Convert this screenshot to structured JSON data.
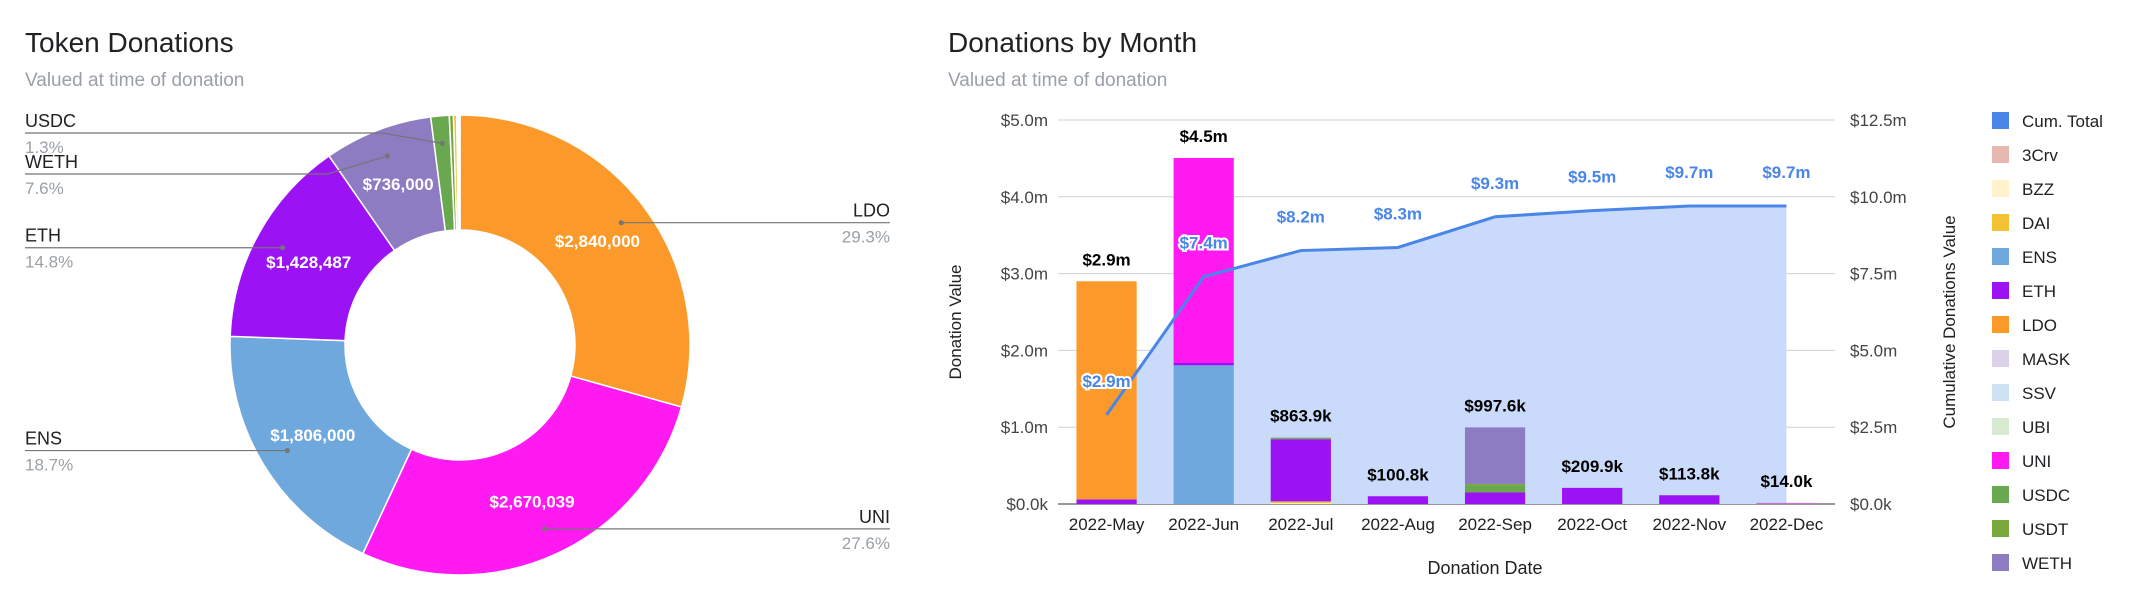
{
  "chart_data": [
    {
      "type": "pie",
      "title": "Token Donations",
      "subtitle": "Valued at time of donation",
      "donut": true,
      "slices": [
        {
          "name": "LDO",
          "value": 2840000,
          "value_label": "$2,840,000",
          "pct": "29.3%",
          "color": "#fb9a2a"
        },
        {
          "name": "UNI",
          "value": 2670039,
          "value_label": "$2,670,039",
          "pct": "27.6%",
          "color": "#ff1af2"
        },
        {
          "name": "ENS",
          "value": 1806000,
          "value_label": "$1,806,000",
          "pct": "18.7%",
          "color": "#6fa8dc"
        },
        {
          "name": "ETH",
          "value": 1428487,
          "value_label": "$1,428,487",
          "pct": "14.8%",
          "color": "#9b12f5"
        },
        {
          "name": "WETH",
          "value": 736000,
          "value_label": "$736,000",
          "pct": "7.6%",
          "color": "#8e7cc3"
        },
        {
          "name": "USDC",
          "value": 125000,
          "value_label": "",
          "pct": "1.3%",
          "color": "#6aa84f"
        },
        {
          "name": "USDT",
          "value": 28000,
          "value_label": "",
          "pct": "",
          "color": "#79a83f"
        },
        {
          "name": "DAI",
          "value": 22000,
          "value_label": "",
          "pct": "",
          "color": "#f1c232"
        },
        {
          "name": "BZZ",
          "value": 12000,
          "value_label": "",
          "pct": "",
          "color": "#fff2cc"
        },
        {
          "name": "3Crv",
          "value": 10000,
          "value_label": "",
          "pct": "",
          "color": "#e6b8af"
        }
      ],
      "outside_labels": [
        "LDO",
        "UNI",
        "ENS",
        "ETH",
        "WETH",
        "USDC"
      ]
    },
    {
      "type": "bar",
      "stacked": true,
      "title": "Donations by Month",
      "subtitle": "Valued at time of donation",
      "xlabel": "Donation Date",
      "ylabel": "Donation Value",
      "y2label": "Cumulative Donations Value",
      "ylim": [
        0,
        5000000
      ],
      "y2lim": [
        0,
        12500000
      ],
      "yticks": [
        "$0.0k",
        "$1.0m",
        "$2.0m",
        "$3.0m",
        "$4.0m",
        "$5.0m"
      ],
      "y2ticks": [
        "$0.0k",
        "$2.5m",
        "$5.0m",
        "$7.5m",
        "$10.0m",
        "$12.5m"
      ],
      "categories": [
        "2022-May",
        "2022-Jun",
        "2022-Jul",
        "2022-Aug",
        "2022-Sep",
        "2022-Oct",
        "2022-Nov",
        "2022-Dec"
      ],
      "totals_labels": [
        "$2.9m",
        "$4.5m",
        "$863.9k",
        "$100.8k",
        "$997.6k",
        "$209.9k",
        "$113.8k",
        "$14.0k"
      ],
      "series": [
        {
          "name": "3Crv",
          "color": "#e6b8af",
          "values": [
            0,
            0,
            0,
            0,
            0,
            0,
            0,
            10000
          ]
        },
        {
          "name": "BZZ",
          "color": "#fff2cc",
          "values": [
            0,
            0,
            12000,
            0,
            0,
            0,
            0,
            0
          ]
        },
        {
          "name": "DAI",
          "color": "#f1c232",
          "values": [
            0,
            0,
            22000,
            0,
            0,
            0,
            0,
            0
          ]
        },
        {
          "name": "ENS",
          "color": "#6fa8dc",
          "values": [
            0,
            1806000,
            0,
            0,
            0,
            0,
            0,
            0
          ]
        },
        {
          "name": "ETH",
          "color": "#9b12f5",
          "values": [
            60000,
            30000,
            810000,
            100800,
            150000,
            209900,
            113800,
            4000
          ]
        },
        {
          "name": "LDO",
          "color": "#fb9a2a",
          "values": [
            2840000,
            0,
            0,
            0,
            0,
            0,
            0,
            0
          ]
        },
        {
          "name": "MASK",
          "color": "#d9d2e9",
          "values": [
            0,
            0,
            0,
            0,
            0,
            0,
            0,
            0
          ]
        },
        {
          "name": "SSV",
          "color": "#cfe2f3",
          "values": [
            0,
            0,
            0,
            0,
            0,
            0,
            0,
            0
          ]
        },
        {
          "name": "UBI",
          "color": "#d9ead3",
          "values": [
            0,
            0,
            0,
            0,
            0,
            0,
            0,
            0
          ]
        },
        {
          "name": "UNI",
          "color": "#ff1af2",
          "values": [
            0,
            2670039,
            0,
            0,
            0,
            0,
            0,
            0
          ]
        },
        {
          "name": "USDC",
          "color": "#6aa84f",
          "values": [
            0,
            0,
            9900,
            0,
            85000,
            0,
            0,
            0
          ]
        },
        {
          "name": "USDT",
          "color": "#79a83f",
          "values": [
            0,
            0,
            10000,
            0,
            26600,
            0,
            0,
            0
          ]
        },
        {
          "name": "WETH",
          "color": "#8e7cc3",
          "values": [
            0,
            0,
            0,
            0,
            736000,
            0,
            0,
            0
          ]
        }
      ],
      "cumulative": {
        "name": "Cum. Total",
        "color": "#4a86e8",
        "area_color": "#c9dafa",
        "values": [
          2900000,
          7400000,
          8250000,
          8350000,
          9350000,
          9550000,
          9700000,
          9700000
        ],
        "labels": [
          "$2.9m",
          "$7.4m",
          "$8.2m",
          "$8.3m",
          "$9.3m",
          "$9.5m",
          "$9.7m",
          "$9.7m"
        ]
      },
      "legend": [
        "Cum. Total",
        "3Crv",
        "BZZ",
        "DAI",
        "ENS",
        "ETH",
        "LDO",
        "MASK",
        "SSV",
        "UBI",
        "UNI",
        "USDC",
        "USDT",
        "WETH"
      ]
    }
  ]
}
